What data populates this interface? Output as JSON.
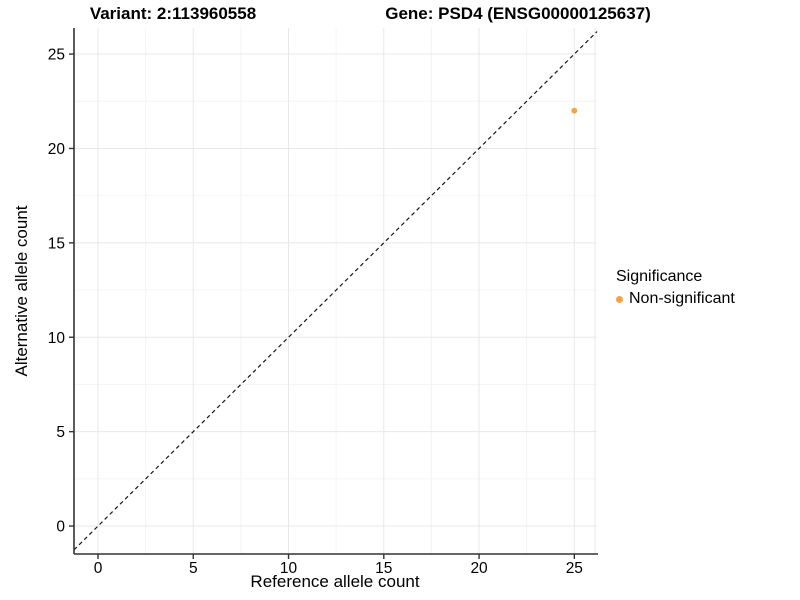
{
  "header": {
    "variant_title": "Variant: 2:113960558",
    "gene_title": "Gene: PSD4 (ENSG00000125637)"
  },
  "axes": {
    "x_label": "Reference allele count",
    "y_label": "Alternative allele count"
  },
  "legend": {
    "title": "Significance",
    "items": [
      {
        "label": "Non-significant",
        "color": "#F9A242",
        "marker": "circle-icon"
      }
    ]
  },
  "colors": {
    "point": "#F9A242",
    "grid_major": "#e8e8e8",
    "grid_minor": "#f4f4f4",
    "axis_line": "#333333",
    "dashed_line": "#161616",
    "tick_text": "#000000",
    "background": "#ffffff"
  },
  "chart_data": {
    "type": "scatter",
    "title": "Variant: 2:113960558   Gene: PSD4 (ENSG00000125637)",
    "xlabel": "Reference allele count",
    "ylabel": "Alternative allele count",
    "xlim": [
      -1.26,
      26.19
    ],
    "ylim": [
      -1.48,
      26.38
    ],
    "x_ticks": [
      0,
      5,
      10,
      15,
      20,
      25
    ],
    "y_ticks": [
      0,
      5,
      10,
      15,
      20,
      25
    ],
    "x_minor": [
      2.5,
      7.5,
      12.5,
      17.5,
      22.5
    ],
    "y_minor": [
      2.5,
      7.5,
      12.5,
      17.5,
      22.5
    ],
    "grid": true,
    "legend_position": "right",
    "series": [
      {
        "name": "Non-significant",
        "color": "#F9A242",
        "points": [
          {
            "x": 25,
            "y": 22
          }
        ]
      }
    ],
    "reference_line": {
      "kind": "identity",
      "slope": 1,
      "intercept": 0,
      "style": "dashed"
    }
  }
}
